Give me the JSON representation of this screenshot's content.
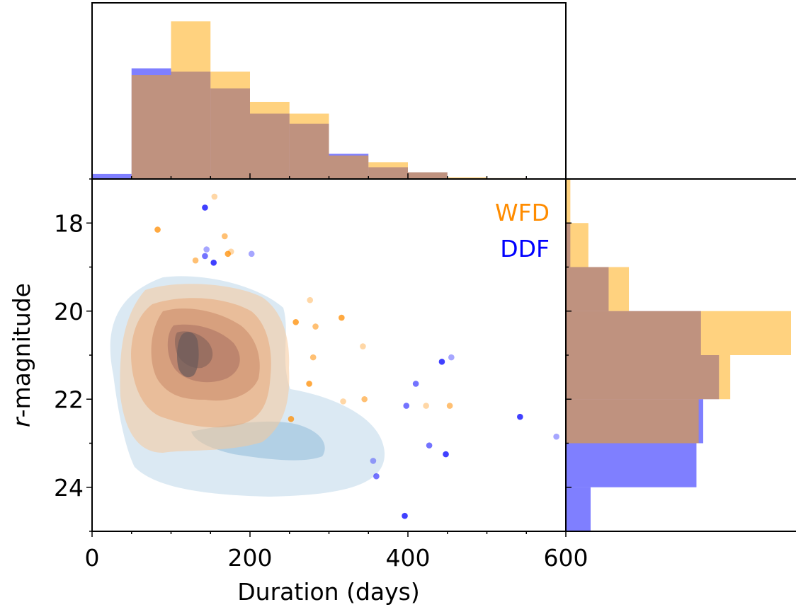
{
  "chart_data": {
    "type": "scatter",
    "xlabel": "Duration (days)",
    "ylabel_italic": "r",
    "ylabel_rest": "-magnitude",
    "xlim": [
      0,
      600
    ],
    "ylim": [
      25,
      17
    ],
    "grid": false,
    "x_ticks": [
      {
        "value": 0,
        "label": "0"
      },
      {
        "value": 200,
        "label": "200"
      },
      {
        "value": 400,
        "label": "400"
      },
      {
        "value": 600,
        "label": "600"
      }
    ],
    "y_ticks": [
      {
        "value": 18,
        "label": "18"
      },
      {
        "value": 20,
        "label": "20"
      },
      {
        "value": 22,
        "label": "22"
      },
      {
        "value": 24,
        "label": "24"
      }
    ],
    "legend_placement": "top-right",
    "series": [
      {
        "name": "WFD",
        "color": "#ff8c00",
        "scatter": [
          [
            83,
            18.15
          ],
          [
            155,
            17.4
          ],
          [
            168,
            18.3
          ],
          [
            172,
            18.7
          ],
          [
            176,
            18.65
          ],
          [
            131,
            18.85
          ],
          [
            258,
            20.25
          ],
          [
            276,
            19.75
          ],
          [
            283,
            20.35
          ],
          [
            316,
            20.15
          ],
          [
            343,
            20.8
          ],
          [
            280,
            21.05
          ],
          [
            275,
            21.65
          ],
          [
            318,
            22.05
          ],
          [
            345,
            22.0
          ],
          [
            252,
            22.45
          ],
          [
            423,
            22.15
          ],
          [
            453,
            22.15
          ]
        ],
        "x_hist": {
          "bins": [
            0,
            50,
            100,
            150,
            200,
            250,
            300,
            350,
            400,
            450,
            500,
            550,
            600
          ],
          "counts": [
            0,
            0.62,
            0.94,
            0.64,
            0.46,
            0.39,
            0.14,
            0.1,
            0.04,
            0.01,
            0.005,
            0,
            0
          ]
        },
        "y_hist": {
          "bins": [
            17,
            18,
            19,
            20,
            21,
            22,
            23,
            24,
            25
          ],
          "counts": [
            0.02,
            0.1,
            0.28,
            1.0,
            0.73,
            0.59,
            0,
            0
          ]
        },
        "kde_color": "#e8a070"
      },
      {
        "name": "DDF",
        "color": "#0000ff",
        "scatter": [
          [
            143,
            17.65
          ],
          [
            145,
            18.6
          ],
          [
            143,
            18.75
          ],
          [
            154,
            18.9
          ],
          [
            202,
            18.7
          ],
          [
            410,
            21.65
          ],
          [
            443,
            21.15
          ],
          [
            455,
            21.05
          ],
          [
            398,
            22.15
          ],
          [
            542,
            22.4
          ],
          [
            588,
            22.85
          ],
          [
            427,
            23.05
          ],
          [
            448,
            23.25
          ],
          [
            356,
            23.4
          ],
          [
            360,
            23.75
          ],
          [
            396,
            24.65
          ]
        ],
        "x_hist": {
          "bins": [
            0,
            50,
            100,
            150,
            200,
            250,
            300,
            350,
            400,
            450,
            500,
            550,
            600
          ],
          "counts": [
            0.03,
            0.66,
            0.64,
            0.54,
            0.39,
            0.33,
            0.15,
            0.07,
            0.04,
            0,
            0,
            0,
            0
          ]
        },
        "y_hist": {
          "bins": [
            17,
            18,
            19,
            20,
            21,
            22,
            23,
            24,
            25
          ],
          "counts": [
            0.0,
            0.02,
            0.19,
            0.6,
            0.68,
            0.61,
            0.58,
            0.11
          ]
        },
        "kde_color": "#7fb2d8"
      }
    ]
  }
}
